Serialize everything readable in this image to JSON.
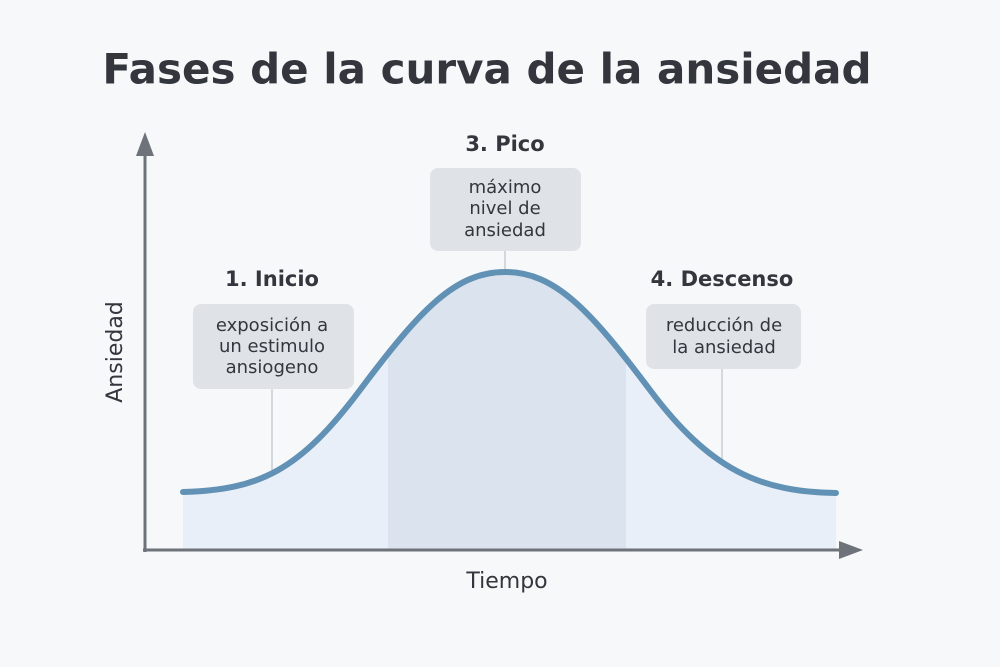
{
  "title": "Fases de la curva de la ansiedad",
  "axes": {
    "y_label": "Ansiedad",
    "x_label": "Tiempo"
  },
  "phases": [
    {
      "title": "1. Inicio",
      "lines": [
        "exposición a",
        "un estimulo",
        "ansiogeno"
      ]
    },
    {
      "title": "3. Pico",
      "lines": [
        "máximo",
        "nivel de",
        "ansiedad"
      ]
    },
    {
      "title": "4. Descenso",
      "lines": [
        "reducción de",
        "la ansiedad"
      ]
    }
  ]
}
